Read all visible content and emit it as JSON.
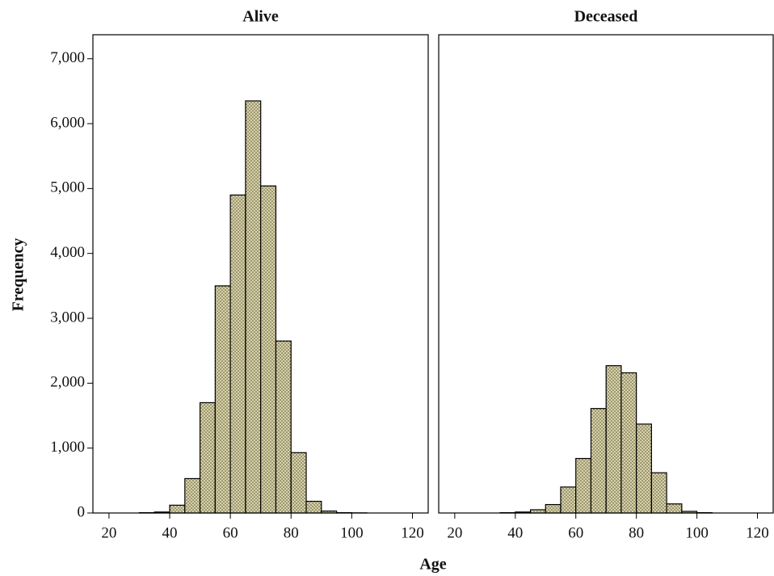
{
  "chart_data": {
    "type": "histogram",
    "xlabel": "Age",
    "ylabel": "Frequency",
    "color": "#d8d2a6",
    "bins": [
      25,
      30,
      35,
      40,
      45,
      50,
      55,
      60,
      65,
      70,
      75,
      80,
      85,
      90,
      95,
      100,
      105
    ],
    "series": [
      {
        "name": "Alive",
        "values": [
          0,
          5,
          15,
          120,
          530,
          1700,
          3500,
          4900,
          6350,
          5040,
          2650,
          930,
          180,
          30,
          5,
          2
        ]
      },
      {
        "name": "Deceased",
        "values": [
          0,
          0,
          5,
          15,
          50,
          130,
          400,
          840,
          1610,
          2270,
          2160,
          1370,
          620,
          140,
          25,
          5
        ]
      }
    ],
    "xlim": [
      14.7,
      125.2
    ],
    "xticks": [
      20,
      40,
      60,
      80,
      100,
      120
    ],
    "ylim": [
      0,
      7370
    ],
    "yticks": [
      0,
      {
        "value": 1000,
        "label": "1,000"
      },
      {
        "value": 2000,
        "label": "2,000"
      },
      {
        "value": 3000,
        "label": "3,000"
      },
      {
        "value": 4000,
        "label": "4,000"
      },
      {
        "value": 5000,
        "label": "5,000"
      },
      {
        "value": 6000,
        "label": "6,000"
      },
      {
        "value": 7000,
        "label": "7,000"
      }
    ]
  }
}
